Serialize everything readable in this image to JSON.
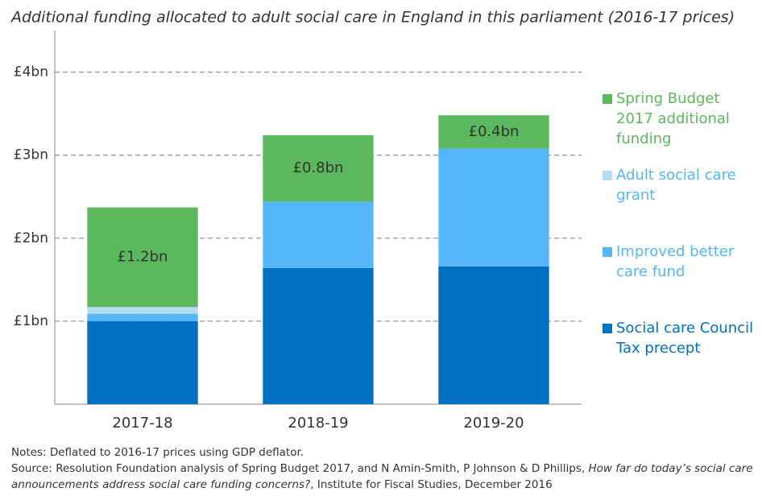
{
  "chart_data": {
    "type": "stacked_bar",
    "title": "Additional funding allocated to adult social care in England in this parliament (2016-17 prices)",
    "categories": [
      "2017-18",
      "2018-19",
      "2019-20"
    ],
    "series": [
      {
        "name": "Social care Council Tax precept",
        "color": "#0070c0",
        "values": [
          1.0,
          1.64,
          1.66
        ]
      },
      {
        "name": "Improved better care fund",
        "color": "#55b7f7",
        "values": [
          0.09,
          0.8,
          1.42
        ]
      },
      {
        "name": "Adult social care grant",
        "color": "#b5dcf4",
        "values": [
          0.08,
          0,
          0
        ]
      },
      {
        "name": "Spring Budget 2017 additional funding",
        "color": "#5cb85c",
        "values": [
          1.2,
          0.8,
          0.4
        ],
        "value_labels": [
          "£1.2bn",
          "£0.8bn",
          "£0.4bn"
        ]
      }
    ],
    "ylim": [
      0,
      4.5
    ],
    "yticks": [
      {
        "value": 1,
        "label": "£1bn"
      },
      {
        "value": 2,
        "label": "£2bn"
      },
      {
        "value": 3,
        "label": "£3bn"
      },
      {
        "value": 4,
        "label": "£4bn"
      }
    ],
    "grid": true,
    "legend": "right"
  },
  "notes": "Notes:  Deflated to 2016-17 prices using GDP deflator.",
  "source": {
    "before": "Source: Resolution Foundation analysis of Spring Budget 2017, and N Amin-Smith, P Johnson & D Phillips, ",
    "italic": "How far do today’s social care announcements address social care funding concerns?",
    "after": ", Institute for Fiscal Studies, December 2016"
  }
}
